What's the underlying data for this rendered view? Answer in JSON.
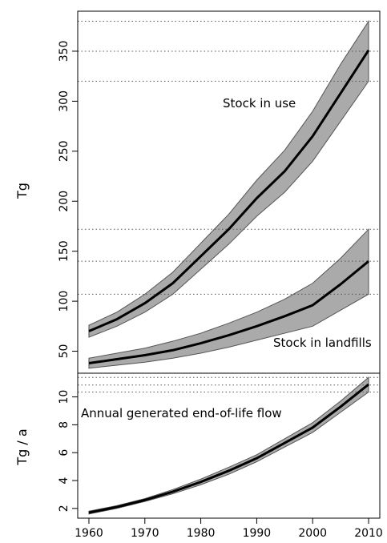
{
  "colors": {
    "band": "#aaaaaa",
    "band_edge": "#555555",
    "mean_line": "#000000",
    "ref_line": "#555555"
  },
  "chart_data": [
    {
      "type": "area",
      "ylabel": "Tg",
      "xlim": [
        1958,
        2012
      ],
      "ylim": [
        28,
        390
      ],
      "yticks": [
        50,
        100,
        150,
        200,
        250,
        300,
        350
      ],
      "xticks": [],
      "grid": false,
      "legend": "none",
      "annotations": [
        "Stock in use",
        "Stock in landfills"
      ],
      "reference_lines": [
        380,
        350,
        320,
        172,
        140,
        107
      ],
      "x": [
        1960,
        1965,
        1970,
        1975,
        1980,
        1985,
        1990,
        1995,
        2000,
        2005,
        2010
      ],
      "series": [
        {
          "name": "Stock in use",
          "mean": [
            70,
            82,
            98,
            118,
            145,
            172,
            203,
            230,
            265,
            308,
            351
          ],
          "lower": [
            64,
            75,
            89,
            107,
            132,
            157,
            185,
            209,
            240,
            280,
            320
          ],
          "upper": [
            76,
            89,
            107,
            129,
            158,
            187,
            221,
            251,
            290,
            337,
            380
          ]
        },
        {
          "name": "Stock in landfills",
          "mean": [
            38,
            42,
            46,
            51,
            58,
            66,
            75,
            85,
            96,
            117,
            140
          ],
          "lower": [
            33,
            36,
            39,
            43,
            48,
            54,
            61,
            68,
            75,
            91,
            107
          ],
          "upper": [
            43,
            48,
            53,
            60,
            68,
            78,
            89,
            102,
            118,
            143,
            172
          ]
        }
      ]
    },
    {
      "type": "area",
      "ylabel": "Tg / a",
      "xlim": [
        1958,
        2012
      ],
      "ylim": [
        1.3,
        11.7
      ],
      "yticks": [
        2,
        4,
        6,
        8,
        10
      ],
      "xticks": [
        1960,
        1970,
        1980,
        1990,
        2000,
        2010
      ],
      "grid": false,
      "legend": "none",
      "annotations": [
        "Annual generated end-of-life flow"
      ],
      "reference_lines": [
        11.4,
        10.85,
        10.35
      ],
      "x": [
        1960,
        1965,
        1970,
        1975,
        1980,
        1985,
        1990,
        1995,
        2000,
        2005,
        2010
      ],
      "series": [
        {
          "name": "Annual generated end-of-life flow",
          "mean": [
            1.7,
            2.1,
            2.6,
            3.2,
            3.9,
            4.7,
            5.6,
            6.7,
            7.8,
            9.3,
            10.9
          ],
          "lower": [
            1.6,
            2.0,
            2.5,
            3.05,
            3.7,
            4.45,
            5.35,
            6.4,
            7.45,
            8.9,
            10.35
          ],
          "upper": [
            1.8,
            2.2,
            2.7,
            3.35,
            4.1,
            4.95,
            5.85,
            7.0,
            8.15,
            9.7,
            11.4
          ]
        }
      ]
    }
  ]
}
